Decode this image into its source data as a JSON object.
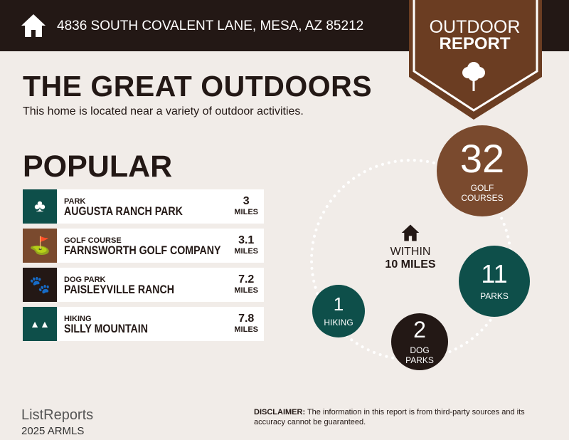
{
  "header": {
    "address": "4836 SOUTH COVALENT LANE, MESA, AZ 85212",
    "icon": "home-icon"
  },
  "badge": {
    "line1": "OUTDOOR",
    "line2": "REPORT",
    "icon": "tree-icon"
  },
  "title": "THE GREAT OUTDOORS",
  "subtitle": "This home is located near a variety of outdoor activities.",
  "popular": {
    "heading": "POPULAR",
    "items": [
      {
        "category": "PARK",
        "name": "AUGUSTA RANCH PARK",
        "distance": "3",
        "unit": "MILES",
        "icon": "park-icon",
        "color": "#0e4f4a"
      },
      {
        "category": "GOLF COURSE",
        "name": "FARNSWORTH GOLF COMPANY",
        "distance": "3.1",
        "unit": "MILES",
        "icon": "golf-bag-icon",
        "color": "#7a4a2e"
      },
      {
        "category": "DOG PARK",
        "name": "PAISLEYVILLE RANCH",
        "distance": "7.2",
        "unit": "MILES",
        "icon": "paw-icon",
        "color": "#231815"
      },
      {
        "category": "HIKING",
        "name": "SILLY MOUNTAIN",
        "distance": "7.8",
        "unit": "MILES",
        "icon": "trees-icon",
        "color": "#0e4f4a"
      }
    ]
  },
  "within": {
    "line1": "WITHIN",
    "line2": "10 MILES"
  },
  "stats": [
    {
      "count": "32",
      "label1": "GOLF",
      "label2": "COURSES",
      "color": "#7a4a2e"
    },
    {
      "count": "11",
      "label1": "PARKS",
      "label2": "",
      "color": "#0e4f4a"
    },
    {
      "count": "2",
      "label1": "DOG",
      "label2": "PARKS",
      "color": "#231815"
    },
    {
      "count": "1",
      "label1": "HIKING",
      "label2": "",
      "color": "#0e4f4a"
    }
  ],
  "footer": {
    "disclaimer_label": "DISCLAIMER:",
    "disclaimer": " The information in this report is from third-party sources and its accuracy cannot be guaranteed.",
    "logo": "ListReports",
    "copyright": "2025 ARMLS"
  }
}
